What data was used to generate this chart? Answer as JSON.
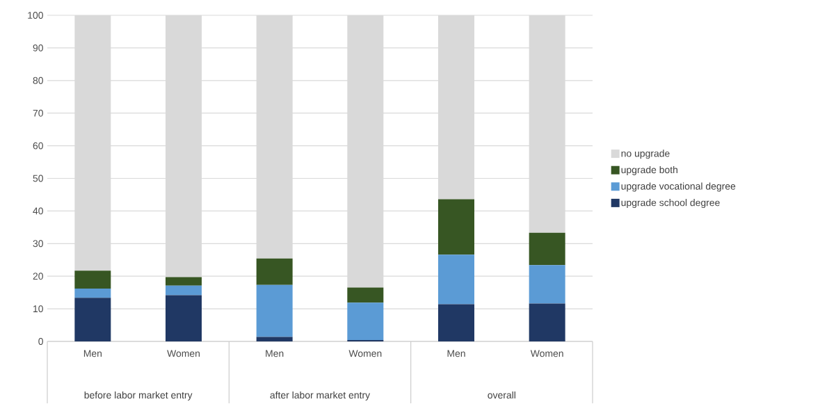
{
  "chart_data": {
    "type": "bar",
    "stacked": true,
    "categories": [
      "Men",
      "Women",
      "Men",
      "Women",
      "Men",
      "Women"
    ],
    "series": [
      {
        "name": "upgrade school degree",
        "color": "#203864",
        "values": [
          13.4,
          14.2,
          1.4,
          0.4,
          11.4,
          11.6
        ]
      },
      {
        "name": "upgrade vocational degree",
        "color": "#5b9bd5",
        "values": [
          2.8,
          2.9,
          15.9,
          11.5,
          15.2,
          11.8
        ]
      },
      {
        "name": "upgrade both",
        "color": "#375623",
        "values": [
          5.5,
          2.6,
          8.1,
          4.6,
          17.0,
          9.9
        ]
      },
      {
        "name": "no upgrade",
        "color": "#d9d9d9",
        "values": [
          78.3,
          80.3,
          74.6,
          83.5,
          56.4,
          66.7
        ]
      }
    ],
    "annotations": [
      "before labor market entry",
      "after labor market entry",
      "overall"
    ],
    "ylim": [
      0,
      100
    ],
    "yticks": [
      0,
      10,
      20,
      30,
      40,
      50,
      60,
      70,
      80,
      90,
      100
    ],
    "grid": "y",
    "legend": "right"
  }
}
